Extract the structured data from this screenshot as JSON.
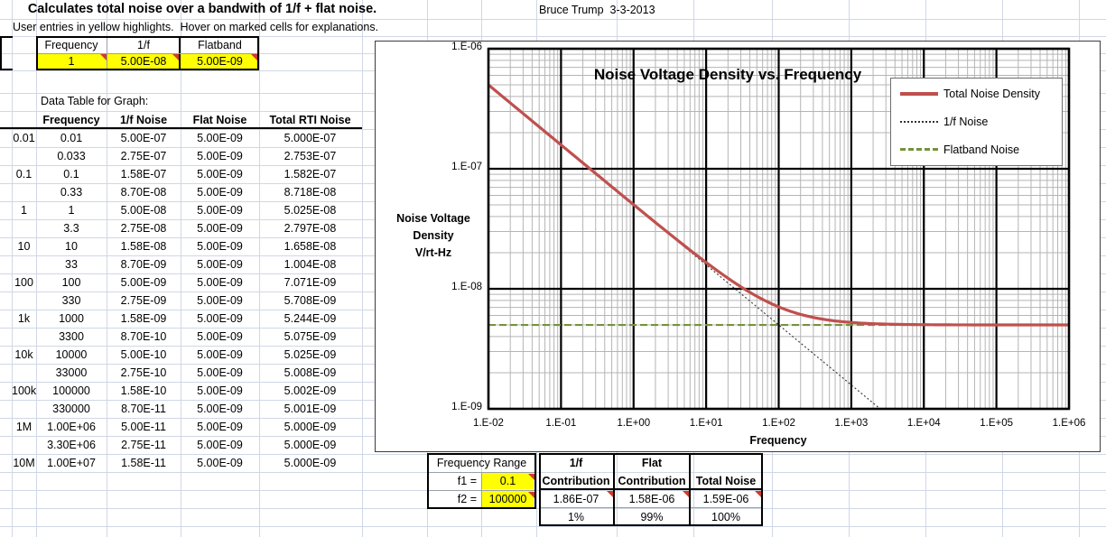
{
  "header": {
    "title": "Calculates total noise over a bandwith of 1/f + flat noise.",
    "subtitle": "User entries in yellow highlights.  Hover on marked cells for explanations.",
    "author_date": "Bruce Trump  3-3-2013"
  },
  "input_table": {
    "headers": [
      "Frequency",
      "1/f",
      "Flatband"
    ],
    "values": [
      "1",
      "5.00E-08",
      "5.00E-09"
    ]
  },
  "data_table": {
    "caption": "Data Table for Graph:",
    "headers": [
      "Frequency",
      "1/f Noise",
      "Flat Noise",
      "Total RTI Noise"
    ],
    "rows": [
      [
        "0.01",
        "0.01",
        "5.00E-07",
        "5.00E-09",
        "5.000E-07"
      ],
      [
        "",
        "0.033",
        "2.75E-07",
        "5.00E-09",
        "2.753E-07"
      ],
      [
        "0.1",
        "0.1",
        "1.58E-07",
        "5.00E-09",
        "1.582E-07"
      ],
      [
        "",
        "0.33",
        "8.70E-08",
        "5.00E-09",
        "8.718E-08"
      ],
      [
        "1",
        "1",
        "5.00E-08",
        "5.00E-09",
        "5.025E-08"
      ],
      [
        "",
        "3.3",
        "2.75E-08",
        "5.00E-09",
        "2.797E-08"
      ],
      [
        "10",
        "10",
        "1.58E-08",
        "5.00E-09",
        "1.658E-08"
      ],
      [
        "",
        "33",
        "8.70E-09",
        "5.00E-09",
        "1.004E-08"
      ],
      [
        "100",
        "100",
        "5.00E-09",
        "5.00E-09",
        "7.071E-09"
      ],
      [
        "",
        "330",
        "2.75E-09",
        "5.00E-09",
        "5.708E-09"
      ],
      [
        "1k",
        "1000",
        "1.58E-09",
        "5.00E-09",
        "5.244E-09"
      ],
      [
        "",
        "3300",
        "8.70E-10",
        "5.00E-09",
        "5.075E-09"
      ],
      [
        "10k",
        "10000",
        "5.00E-10",
        "5.00E-09",
        "5.025E-09"
      ],
      [
        "",
        "33000",
        "2.75E-10",
        "5.00E-09",
        "5.008E-09"
      ],
      [
        "100k",
        "100000",
        "1.58E-10",
        "5.00E-09",
        "5.002E-09"
      ],
      [
        "",
        "330000",
        "8.70E-11",
        "5.00E-09",
        "5.001E-09"
      ],
      [
        "1M",
        "1.00E+06",
        "5.00E-11",
        "5.00E-09",
        "5.000E-09"
      ],
      [
        "",
        "3.30E+06",
        "2.75E-11",
        "5.00E-09",
        "5.000E-09"
      ],
      [
        "10M",
        "1.00E+07",
        "1.58E-11",
        "5.00E-09",
        "5.000E-09"
      ]
    ]
  },
  "summary_table": {
    "range_header": "Frequency Range",
    "f1_label": "f1 =",
    "f1_value": "0.1",
    "f2_label": "f2 =",
    "f2_value": "100000",
    "col1_line1": "1/f",
    "col1_line2": "Contribution",
    "col2_line1": "Flat",
    "col2_line2": "Contribution",
    "col3_label": "Total Noise",
    "values": [
      "1.86E-07",
      "1.58E-06",
      "1.59E-06"
    ],
    "percents": [
      "1%",
      "99%",
      "100%"
    ]
  },
  "colors": {
    "highlight": "#ffff00",
    "total_noise": "#c0504d",
    "one_over_f_noise": "#333333",
    "flatband_noise": "#76923c",
    "minor_grid": "#b5b5b5",
    "major_grid": "#000000"
  },
  "chart_data": {
    "type": "line",
    "title": "Noise Voltage Density vs. Frequency",
    "xlabel": "Frequency",
    "ylabel": "Noise Voltage Density V/rt-Hz",
    "ylabel_lines": [
      "Noise Voltage",
      "Density",
      "V/rt-Hz"
    ],
    "x_scale": "log",
    "y_scale": "log",
    "xlim": [
      0.01,
      1000000
    ],
    "ylim": [
      1e-09,
      1e-06
    ],
    "x_ticks": [
      "1.E-02",
      "1.E-01",
      "1.E+00",
      "1.E+01",
      "1.E+02",
      "1.E+03",
      "1.E+04",
      "1.E+05",
      "1.E+06"
    ],
    "y_ticks": [
      "1.E-06",
      "1.E-07",
      "1.E-08",
      "1.E-09"
    ],
    "grid": "log-major-and-minor",
    "legend_position": "upper-right-inside",
    "legend": [
      {
        "label": "Total Noise Density",
        "color": "#c0504d",
        "style": "solid",
        "stroke_width": 3.2,
        "dash": ""
      },
      {
        "label": "1/f Noise",
        "color": "#333333",
        "style": "dotted",
        "stroke_width": 1.1,
        "dash": "2 2.5"
      },
      {
        "label": "Flatband Noise",
        "color": "#76923c",
        "style": "dashed",
        "stroke_width": 2.2,
        "dash": "8 4"
      }
    ],
    "series": [
      {
        "name": "Total Noise Density",
        "model": "rss",
        "one_over_f_at_1hz": 5e-08,
        "flatband": 5e-09,
        "f_start": 0.01,
        "f_end": 1000000,
        "x": [
          0.01,
          0.033,
          0.1,
          0.33,
          1,
          3.3,
          10,
          33,
          100,
          330,
          1000,
          3300,
          10000,
          33000,
          100000,
          330000,
          1000000.0,
          3300000.0,
          10000000.0
        ],
        "y": [
          5e-07,
          2.753e-07,
          1.582e-07,
          8.718e-08,
          5.025e-08,
          2.797e-08,
          1.658e-08,
          1.004e-08,
          7.071e-09,
          5.708e-09,
          5.244e-09,
          5.075e-09,
          5.025e-09,
          5.008e-09,
          5.002e-09,
          5.001e-09,
          5e-09,
          5e-09,
          5e-09
        ]
      },
      {
        "name": "1/f Noise",
        "model": "one_over_sqrt_f",
        "coeff_at_1hz": 5e-08,
        "f_start": 0.01,
        "f_end": 2500,
        "x": [
          0.01,
          0.033,
          0.1,
          0.33,
          1,
          3.3,
          10,
          33,
          100,
          330,
          1000,
          2500
        ],
        "y": [
          5e-07,
          2.75e-07,
          1.58e-07,
          8.7e-08,
          5e-08,
          2.75e-08,
          1.58e-08,
          8.7e-09,
          5e-09,
          2.75e-09,
          1.58e-09,
          1e-09
        ]
      },
      {
        "name": "Flatband Noise",
        "model": "constant",
        "value": 5e-09,
        "f_start": 0.01,
        "f_end": 1000000,
        "x": [
          0.01,
          1000000
        ],
        "y": [
          5e-09,
          5e-09
        ]
      }
    ]
  }
}
